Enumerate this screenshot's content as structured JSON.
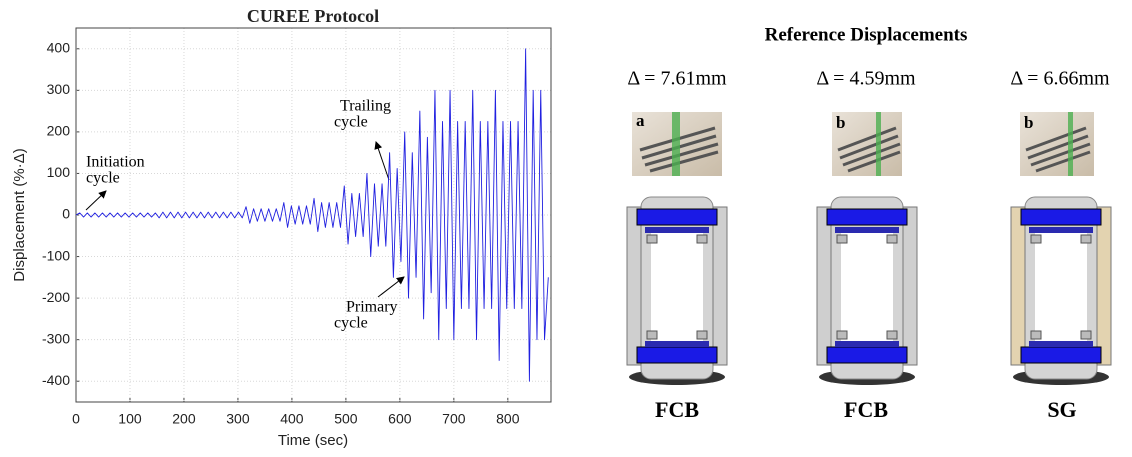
{
  "chart_data": {
    "type": "line",
    "title": "CUREE Protocol",
    "xlabel": "Time (sec)",
    "ylabel": "Displacement (%·Δ)",
    "x": [
      0,
      7,
      14,
      21,
      28,
      35,
      42,
      49,
      56,
      63,
      70,
      77,
      84,
      91,
      98,
      105,
      112,
      119,
      126,
      133,
      140,
      147,
      154,
      161,
      168,
      175,
      182,
      189,
      196,
      203,
      210,
      217,
      224,
      231,
      238,
      245,
      252,
      259,
      266,
      273,
      280,
      287,
      294,
      301,
      308,
      315,
      322,
      329,
      336,
      343,
      350,
      357,
      364,
      371,
      378,
      385,
      392,
      399,
      406,
      413,
      420,
      427,
      434,
      441,
      448,
      455,
      462,
      469,
      476,
      483,
      490,
      497,
      504,
      511,
      518,
      525,
      532,
      539,
      546,
      553,
      560,
      567,
      574,
      581,
      588,
      595,
      602,
      609,
      616,
      623,
      630,
      637,
      644,
      651,
      658,
      665,
      672,
      679,
      686,
      693,
      700,
      707,
      714,
      721,
      728,
      735,
      742,
      749,
      756,
      763,
      770,
      777,
      784,
      791,
      798,
      805,
      812,
      819,
      826,
      833,
      840,
      847,
      854,
      861,
      868,
      875
    ],
    "values": [
      0,
      5,
      -5,
      5,
      -5,
      5,
      -5,
      5,
      -5,
      5,
      -5,
      5,
      -5,
      5,
      -5,
      5,
      -5,
      5,
      -5,
      5,
      -5,
      5,
      -7,
      7,
      -7,
      7,
      -7,
      7,
      -7,
      7,
      -7,
      7,
      -7,
      7,
      -7,
      7,
      -7,
      7,
      -7,
      7,
      -7,
      7,
      -7,
      7,
      -7,
      20,
      -20,
      15,
      -15,
      15,
      -15,
      15,
      -15,
      15,
      -15,
      30,
      -30,
      22,
      -22,
      22,
      -22,
      22,
      -22,
      40,
      -40,
      30,
      -30,
      30,
      -30,
      30,
      -30,
      70,
      -70,
      52,
      -52,
      52,
      -52,
      100,
      -100,
      75,
      -75,
      75,
      -75,
      150,
      -150,
      112,
      -112,
      200,
      -200,
      150,
      -150,
      250,
      -250,
      187,
      -187,
      300,
      -300,
      225,
      -225,
      300,
      -300,
      225,
      -225,
      225,
      -225,
      300,
      -300,
      225,
      -225,
      225,
      -225,
      300,
      -350,
      225,
      -225,
      225,
      -225,
      225,
      -225,
      400,
      -400,
      300,
      -300,
      300,
      -300,
      -150
    ],
    "color": "#2020e0",
    "xlim": [
      0,
      880
    ],
    "xticks": [
      0,
      100,
      200,
      300,
      400,
      500,
      600,
      700,
      800
    ],
    "ylim": [
      -450,
      450
    ],
    "yticks": [
      -400,
      -300,
      -200,
      -100,
      0,
      100,
      200,
      300,
      400
    ],
    "grid": true,
    "annotations": [
      {
        "lines": [
          "Initiation",
          "cycle"
        ]
      },
      {
        "lines": [
          "Trailing",
          "cycle"
        ]
      },
      {
        "lines": [
          "Primary",
          "cycle"
        ]
      }
    ]
  },
  "reference": {
    "title": "Reference Displacements",
    "specimens": [
      {
        "delta": "Δ = 7.61mm",
        "tag": "a",
        "label": "FCB"
      },
      {
        "delta": "Δ = 4.59mm",
        "tag": "b",
        "label": "FCB"
      },
      {
        "delta": "Δ = 6.66mm",
        "tag": "b",
        "label": "SG"
      }
    ]
  }
}
